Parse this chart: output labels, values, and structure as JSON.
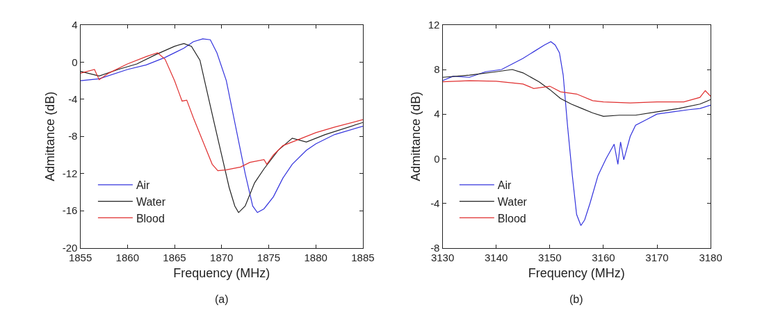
{
  "chart_data": [
    {
      "type": "line",
      "xlabel": "Frequency (MHz)",
      "ylabel": "Admittance (dB)",
      "annotations": [
        "(a)"
      ],
      "xlim": [
        1855,
        1885
      ],
      "xticks": [
        1855,
        1860,
        1865,
        1870,
        1875,
        1880,
        1885
      ],
      "ylim": [
        -20,
        4
      ],
      "yticks": [
        -20,
        -16,
        -12,
        -8,
        -4,
        0,
        4
      ],
      "legend": "bottom left",
      "line_style": "solid",
      "marker": "none",
      "series": [
        {
          "name": "Air",
          "color": "#3333dd",
          "x": [
            1855,
            1857,
            1860,
            1862,
            1864,
            1866,
            1867,
            1868,
            1868.8,
            1869.5,
            1870.5,
            1871.5,
            1872.5,
            1873.3,
            1873.8,
            1874.5,
            1875.5,
            1876.5,
            1877.5,
            1879,
            1880,
            1882,
            1885
          ],
          "values": [
            -2,
            -1.8,
            -0.8,
            -0.3,
            0.5,
            1.5,
            2.2,
            2.5,
            2.4,
            1.0,
            -2,
            -7,
            -12,
            -15.5,
            -16.2,
            -15.8,
            -14.5,
            -12.5,
            -11,
            -9.5,
            -8.8,
            -7.8,
            -6.9
          ]
        },
        {
          "name": "Water",
          "color": "#222222",
          "x": [
            1855,
            1857,
            1859,
            1861,
            1863,
            1865,
            1866,
            1866.8,
            1867.7,
            1868.3,
            1869.2,
            1870,
            1870.8,
            1871.4,
            1871.8,
            1872.5,
            1873.5,
            1874.5,
            1876,
            1877.5,
            1879,
            1881,
            1885
          ],
          "values": [
            -1,
            -1.5,
            -0.8,
            -0.2,
            0.8,
            1.7,
            2.0,
            1.7,
            0.2,
            -2.5,
            -6.5,
            -10,
            -13.5,
            -15.5,
            -16.2,
            -15.5,
            -13,
            -11.5,
            -9.5,
            -8.2,
            -8.6,
            -7.8,
            -6.5
          ]
        },
        {
          "name": "Blood",
          "color": "#e03030",
          "x": [
            1855,
            1856.5,
            1857,
            1858,
            1860,
            1862,
            1863.2,
            1864,
            1865,
            1865.8,
            1866.3,
            1867,
            1868,
            1869,
            1869.6,
            1870.5,
            1872,
            1873,
            1874.5,
            1874.8,
            1875.5,
            1876.5,
            1878,
            1880,
            1882,
            1885
          ],
          "values": [
            -1.2,
            -0.8,
            -1.9,
            -1.2,
            -0.2,
            0.6,
            1.0,
            0.3,
            -2,
            -4.2,
            -4.1,
            -6,
            -8.5,
            -11,
            -11.7,
            -11.6,
            -11.3,
            -10.8,
            -10.5,
            -11,
            -10,
            -9,
            -8.4,
            -7.6,
            -7.0,
            -6.2
          ]
        }
      ]
    },
    {
      "type": "line",
      "xlabel": "Frequency (MHz)",
      "ylabel": "Admittance (dB)",
      "annotations": [
        "(b)"
      ],
      "xlim": [
        3130,
        3180
      ],
      "xticks": [
        3130,
        3140,
        3150,
        3160,
        3170,
        3180
      ],
      "ylim": [
        -8,
        12
      ],
      "yticks": [
        -8,
        -4,
        0,
        4,
        8,
        12
      ],
      "legend": "bottom left",
      "line_style": "solid",
      "marker": "none",
      "series": [
        {
          "name": "Air",
          "color": "#3333dd",
          "x": [
            3130,
            3132,
            3135,
            3138,
            3141,
            3143,
            3145,
            3147,
            3149,
            3150.2,
            3151,
            3151.8,
            3152.5,
            3153.3,
            3154.2,
            3155,
            3155.8,
            3156.5,
            3157.5,
            3159,
            3160.5,
            3162,
            3162.7,
            3163.2,
            3163.8,
            3165,
            3166,
            3168,
            3170,
            3173,
            3176,
            3178,
            3180
          ],
          "values": [
            7,
            7.4,
            7.3,
            7.8,
            8.0,
            8.5,
            9.0,
            9.6,
            10.2,
            10.5,
            10.2,
            9.5,
            7.5,
            3,
            -1.5,
            -5,
            -6.0,
            -5.5,
            -4,
            -1.5,
            0,
            1.3,
            -0.5,
            1.5,
            -0.1,
            2,
            3,
            3.5,
            4.0,
            4.2,
            4.4,
            4.5,
            4.8
          ]
        },
        {
          "name": "Water",
          "color": "#222222",
          "x": [
            3130,
            3135,
            3140,
            3143,
            3145,
            3148,
            3150,
            3152,
            3154,
            3156,
            3158,
            3160,
            3163,
            3166,
            3170,
            3174,
            3178,
            3180
          ],
          "values": [
            7.3,
            7.5,
            7.8,
            8.0,
            7.7,
            6.9,
            6.2,
            5.4,
            4.9,
            4.5,
            4.1,
            3.8,
            3.9,
            3.9,
            4.2,
            4.5,
            4.9,
            5.3
          ]
        },
        {
          "name": "Blood",
          "color": "#e03030",
          "x": [
            3130,
            3135,
            3140,
            3145,
            3147,
            3150,
            3152,
            3155,
            3158,
            3160,
            3165,
            3170,
            3175,
            3178,
            3179,
            3180
          ],
          "values": [
            6.9,
            7.0,
            6.95,
            6.7,
            6.3,
            6.5,
            6.0,
            5.8,
            5.2,
            5.1,
            5.0,
            5.1,
            5.1,
            5.5,
            6.1,
            5.6
          ]
        }
      ]
    }
  ]
}
